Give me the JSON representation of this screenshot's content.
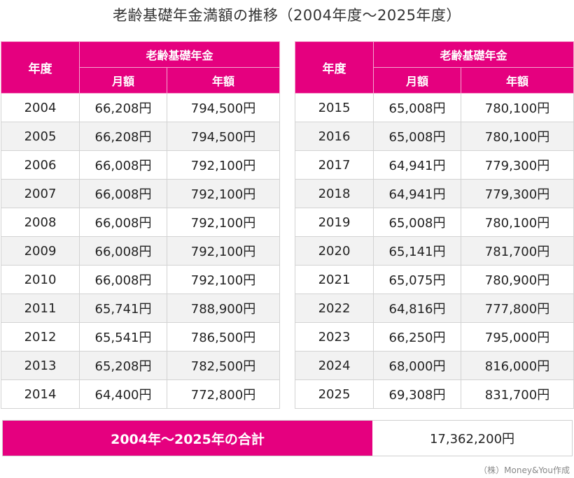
{
  "title": "老齢基礎年金満額の推移（2004年度〜2025年度）",
  "headers": {
    "year": "年度",
    "group": "老齢基礎年金",
    "monthly": "月額",
    "annual": "年額"
  },
  "left_rows": [
    {
      "year": "2004",
      "monthly": "66,208円",
      "annual": "794,500円"
    },
    {
      "year": "2005",
      "monthly": "66,208円",
      "annual": "794,500円"
    },
    {
      "year": "2006",
      "monthly": "66,008円",
      "annual": "792,100円"
    },
    {
      "year": "2007",
      "monthly": "66,008円",
      "annual": "792,100円"
    },
    {
      "year": "2008",
      "monthly": "66,008円",
      "annual": "792,100円"
    },
    {
      "year": "2009",
      "monthly": "66,008円",
      "annual": "792,100円"
    },
    {
      "year": "2010",
      "monthly": "66,008円",
      "annual": "792,100円"
    },
    {
      "year": "2011",
      "monthly": "65,741円",
      "annual": "788,900円"
    },
    {
      "year": "2012",
      "monthly": "65,541円",
      "annual": "786,500円"
    },
    {
      "year": "2013",
      "monthly": "65,208円",
      "annual": "782,500円"
    },
    {
      "year": "2014",
      "monthly": "64,400円",
      "annual": "772,800円"
    }
  ],
  "right_rows": [
    {
      "year": "2015",
      "monthly": "65,008円",
      "annual": "780,100円"
    },
    {
      "year": "2016",
      "monthly": "65,008円",
      "annual": "780,100円"
    },
    {
      "year": "2017",
      "monthly": "64,941円",
      "annual": "779,300円"
    },
    {
      "year": "2018",
      "monthly": "64,941円",
      "annual": "779,300円"
    },
    {
      "year": "2019",
      "monthly": "65,008円",
      "annual": "780,100円"
    },
    {
      "year": "2020",
      "monthly": "65,141円",
      "annual": "781,700円"
    },
    {
      "year": "2021",
      "monthly": "65,075円",
      "annual": "780,900円"
    },
    {
      "year": "2022",
      "monthly": "64,816円",
      "annual": "777,800円"
    },
    {
      "year": "2023",
      "monthly": "66,250円",
      "annual": "795,000円"
    },
    {
      "year": "2024",
      "monthly": "68,000円",
      "annual": "816,000円"
    },
    {
      "year": "2025",
      "monthly": "69,308円",
      "annual": "831,700円"
    }
  ],
  "total": {
    "label": "2004年〜2025年の合計",
    "value": "17,362,200円"
  },
  "credit": "（株）Money&You作成",
  "colors": {
    "accent": "#e5007f",
    "stripe": "#f2f2f2",
    "border": "#d3d3d3"
  }
}
